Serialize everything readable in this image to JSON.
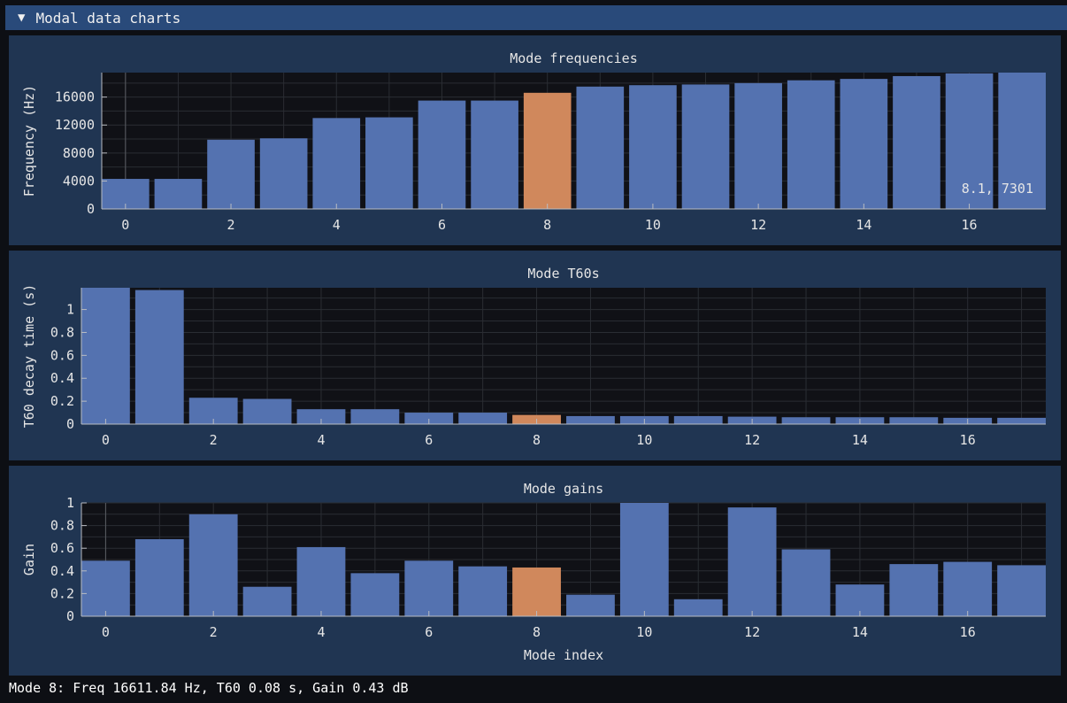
{
  "header": {
    "arrow_icon": "triangle-down-icon",
    "title": "Modal data charts"
  },
  "colors": {
    "bar": "#5472b0",
    "highlight": "#d0885c",
    "plot_bg": "#101116",
    "grid": "#2a2d33",
    "axis": "#b9bcc2",
    "text": "#e6e6e6",
    "panel_bg": "#203552"
  },
  "selected_index": 8,
  "chart_data": [
    {
      "type": "bar",
      "title": "Mode frequencies",
      "xlabel": "",
      "ylabel": "Frequency (Hz)",
      "x": [
        0,
        1,
        2,
        3,
        4,
        5,
        6,
        7,
        8,
        9,
        10,
        11,
        12,
        13,
        14,
        15,
        16,
        17
      ],
      "values": [
        4300,
        4300,
        9900,
        10100,
        13000,
        13100,
        15500,
        15500,
        16611.84,
        17500,
        17700,
        17800,
        18000,
        18400,
        18600,
        19000,
        19400,
        19500
      ],
      "xlim": [
        -0.45,
        17.45
      ],
      "ylim": [
        0,
        19500
      ],
      "xticks": [
        0,
        2,
        4,
        6,
        8,
        10,
        12,
        14,
        16
      ],
      "yticks": [
        0,
        4000,
        8000,
        12000,
        16000
      ],
      "ytick_labels": [
        "0",
        "4000",
        "8000",
        "12000",
        "16000"
      ],
      "bar_width": 0.9,
      "grid": true,
      "hover_readout": "8.1, 7301"
    },
    {
      "type": "bar",
      "title": "Mode T60s",
      "xlabel": "",
      "ylabel": "T60 decay time (s)",
      "x": [
        0,
        1,
        2,
        3,
        4,
        5,
        6,
        7,
        8,
        9,
        10,
        11,
        12,
        13,
        14,
        15,
        16,
        17
      ],
      "values": [
        1.19,
        1.17,
        0.23,
        0.22,
        0.13,
        0.13,
        0.1,
        0.1,
        0.08,
        0.07,
        0.07,
        0.07,
        0.065,
        0.06,
        0.06,
        0.06,
        0.055,
        0.055
      ],
      "xlim": [
        -0.45,
        17.45
      ],
      "ylim": [
        0,
        1.19
      ],
      "xticks": [
        0,
        2,
        4,
        6,
        8,
        10,
        12,
        14,
        16
      ],
      "yticks": [
        0,
        0.2,
        0.4,
        0.6,
        0.8,
        1
      ],
      "ytick_labels": [
        "0",
        "0.2",
        "0.4",
        "0.6",
        "0.8",
        "1"
      ],
      "bar_width": 0.9,
      "grid": true
    },
    {
      "type": "bar",
      "title": "Mode gains",
      "xlabel": "Mode index",
      "ylabel": "Gain",
      "x": [
        0,
        1,
        2,
        3,
        4,
        5,
        6,
        7,
        8,
        9,
        10,
        11,
        12,
        13,
        14,
        15,
        16,
        17
      ],
      "values": [
        0.49,
        0.68,
        0.9,
        0.26,
        0.61,
        0.38,
        0.49,
        0.44,
        0.43,
        0.19,
        1.0,
        0.15,
        0.96,
        0.59,
        0.28,
        0.46,
        0.48,
        0.45
      ],
      "xlim": [
        -0.45,
        17.45
      ],
      "ylim": [
        0,
        1.0
      ],
      "xticks": [
        0,
        2,
        4,
        6,
        8,
        10,
        12,
        14,
        16
      ],
      "yticks": [
        0,
        0.2,
        0.4,
        0.6,
        0.8,
        1
      ],
      "ytick_labels": [
        "0",
        "0.2",
        "0.4",
        "0.6",
        "0.8",
        "1"
      ],
      "bar_width": 0.9,
      "grid": true
    }
  ],
  "status": "Mode 8: Freq 16611.84 Hz, T60 0.08 s, Gain 0.43 dB"
}
